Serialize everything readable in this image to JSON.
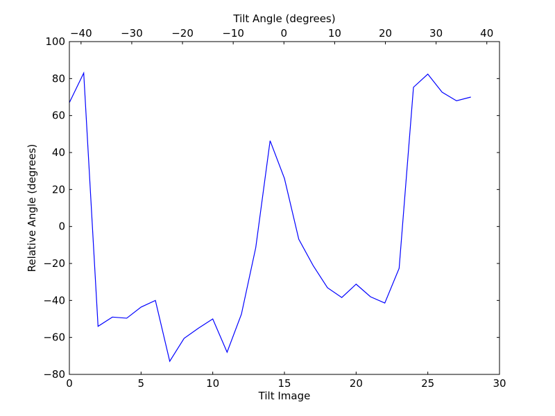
{
  "chart_data": {
    "type": "line",
    "xlabel": "Tilt Image",
    "ylabel": "Relative Angle (degrees)",
    "top_xlabel": "Tilt Angle (degrees)",
    "xlim": [
      0,
      30
    ],
    "ylim": [
      -80,
      100
    ],
    "top_xlim": [
      -42.3,
      42.5
    ],
    "xticks": [
      0,
      5,
      10,
      15,
      20,
      25,
      30
    ],
    "yticks": [
      -80,
      -60,
      -40,
      -20,
      0,
      20,
      40,
      60,
      80,
      100
    ],
    "top_xticks": [
      -40,
      -30,
      -20,
      -10,
      0,
      10,
      20,
      30,
      40
    ],
    "grid": false,
    "line_color": "#0000ff",
    "series": [
      {
        "x": [
          0,
          1,
          2,
          3,
          4,
          5,
          6,
          7,
          8,
          9,
          10,
          11,
          12,
          13,
          14,
          15,
          16,
          17,
          18,
          19,
          20,
          21,
          22,
          23,
          24,
          25,
          26,
          27,
          28
        ],
        "values": [
          67,
          83,
          -54,
          -49,
          -49.6,
          -43.6,
          -40,
          -72.9,
          -60.5,
          -55,
          -50,
          -68,
          -47.4,
          -11.4,
          46.4,
          26,
          -6.9,
          -21.1,
          -33.1,
          -38.4,
          -31.2,
          -38,
          -41.4,
          -22.6,
          75.3,
          82.4,
          72.6,
          68,
          70
        ]
      }
    ]
  }
}
